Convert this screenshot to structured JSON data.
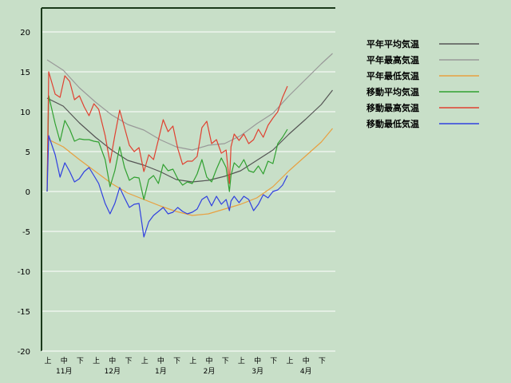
{
  "chart_data": {
    "type": "line",
    "title": "",
    "xlabel": "",
    "ylabel": "",
    "ylim": [
      -20,
      23
    ],
    "yticks": [
      20,
      15,
      10,
      5,
      0,
      -5,
      -10,
      -15,
      -20
    ],
    "grid": true,
    "legend_position": "right",
    "x_range": [
      0,
      18
    ],
    "x_dekad_ticks": [
      "上",
      "中",
      "下",
      "上",
      "中",
      "下",
      "上",
      "中",
      "下",
      "上",
      "中",
      "下",
      "上",
      "中",
      "下",
      "上",
      "中",
      "下"
    ],
    "x_month_labels": [
      "11月",
      "12月",
      "1月",
      "2月",
      "3月",
      "4月"
    ],
    "series": [
      {
        "name": "平年平均気温",
        "color": "#555555",
        "x": [
          0,
          1,
          2,
          3,
          4,
          5,
          6,
          7,
          8,
          9,
          10,
          11,
          12,
          13,
          14,
          15,
          16,
          17,
          17.7
        ],
        "y": [
          11.7,
          10.7,
          8.6,
          6.8,
          5.2,
          3.9,
          3.3,
          2.5,
          1.5,
          1.2,
          1.4,
          1.9,
          2.6,
          3.9,
          5.2,
          7.2,
          9.0,
          10.9,
          12.7
        ]
      },
      {
        "name": "平年最高気温",
        "color": "#999999",
        "x": [
          0,
          1,
          2,
          3,
          4,
          5,
          6,
          7,
          8,
          9,
          10,
          11,
          12,
          13,
          14,
          15,
          16,
          17,
          17.7
        ],
        "y": [
          16.5,
          15.2,
          13.0,
          11.2,
          9.6,
          8.4,
          7.7,
          6.5,
          5.6,
          5.2,
          5.8,
          6.0,
          7.0,
          8.5,
          9.8,
          12.0,
          14.0,
          16.0,
          17.3
        ]
      },
      {
        "name": "平年最低気温",
        "color": "#e8a040",
        "x": [
          0,
          1,
          2,
          3,
          4,
          5,
          6,
          7,
          8,
          9,
          10,
          11,
          12,
          13,
          14,
          15,
          16,
          17,
          17.7
        ],
        "y": [
          6.6,
          5.6,
          4.0,
          2.5,
          1.0,
          -0.2,
          -1.0,
          -1.8,
          -2.5,
          -3.0,
          -2.8,
          -2.2,
          -1.6,
          -0.8,
          0.6,
          2.6,
          4.4,
          6.2,
          7.9
        ]
      },
      {
        "name": "移動平均気温",
        "color": "#30a030",
        "x": [
          0,
          0.1,
          0.5,
          0.8,
          1.1,
          1.4,
          1.7,
          2.0,
          2.3,
          2.6,
          2.9,
          3.2,
          3.6,
          3.9,
          4.2,
          4.5,
          4.8,
          5.1,
          5.4,
          5.7,
          6.0,
          6.3,
          6.6,
          6.9,
          7.2,
          7.5,
          7.8,
          8.1,
          8.4,
          8.7,
          9.0,
          9.3,
          9.6,
          9.9,
          10.2,
          10.5,
          10.8,
          11.1,
          11.3,
          11.4,
          11.6,
          11.9,
          12.2,
          12.5,
          12.8,
          13.1,
          13.4,
          13.7,
          14.0,
          14.3,
          14.6,
          14.9
        ],
        "y": [
          0,
          12.0,
          8.5,
          6.3,
          8.9,
          7.8,
          6.3,
          6.6,
          6.5,
          6.5,
          6.3,
          6.2,
          4.0,
          0.6,
          2.6,
          5.6,
          3.0,
          1.4,
          1.8,
          1.7,
          -1.0,
          1.5,
          2.0,
          1.0,
          3.4,
          2.6,
          2.8,
          1.6,
          0.8,
          1.2,
          1.0,
          2.2,
          4.0,
          1.8,
          1.2,
          2.8,
          4.2,
          3.0,
          0.0,
          2.0,
          3.6,
          3.0,
          4.0,
          2.6,
          2.4,
          3.2,
          2.2,
          3.8,
          3.5,
          6.0,
          6.8,
          7.8
        ]
      },
      {
        "name": "移動最高気温",
        "color": "#e04030",
        "x": [
          0,
          0.1,
          0.5,
          0.8,
          1.1,
          1.4,
          1.7,
          2.0,
          2.3,
          2.6,
          2.9,
          3.2,
          3.6,
          3.9,
          4.2,
          4.5,
          4.8,
          5.1,
          5.4,
          5.7,
          6.0,
          6.3,
          6.6,
          6.9,
          7.2,
          7.5,
          7.8,
          8.1,
          8.4,
          8.7,
          9.0,
          9.3,
          9.6,
          9.9,
          10.2,
          10.5,
          10.8,
          11.1,
          11.3,
          11.4,
          11.6,
          11.9,
          12.2,
          12.5,
          12.8,
          13.1,
          13.4,
          13.7,
          14.0,
          14.3,
          14.6,
          14.9
        ],
        "y": [
          0,
          15.0,
          12.2,
          11.8,
          14.5,
          13.8,
          11.5,
          12.0,
          10.6,
          9.5,
          11.0,
          10.3,
          7.0,
          3.6,
          7.0,
          10.2,
          8.0,
          5.8,
          5.0,
          5.5,
          2.5,
          4.6,
          4.0,
          6.5,
          9.0,
          7.5,
          8.2,
          5.4,
          3.4,
          3.8,
          3.8,
          4.4,
          8.0,
          8.8,
          6.0,
          6.5,
          4.8,
          5.2,
          1.0,
          5.6,
          7.2,
          6.4,
          7.2,
          6.0,
          6.5,
          7.8,
          6.8,
          8.3,
          9.2,
          10.0,
          11.8,
          13.2
        ]
      },
      {
        "name": "移動最低気温",
        "color": "#3040e0",
        "x": [
          0,
          0.1,
          0.5,
          0.8,
          1.1,
          1.4,
          1.7,
          2.0,
          2.3,
          2.6,
          2.9,
          3.2,
          3.6,
          3.9,
          4.2,
          4.5,
          4.8,
          5.1,
          5.4,
          5.7,
          6.0,
          6.3,
          6.6,
          6.9,
          7.2,
          7.5,
          7.8,
          8.1,
          8.4,
          8.7,
          9.0,
          9.3,
          9.6,
          9.9,
          10.2,
          10.5,
          10.8,
          11.1,
          11.3,
          11.4,
          11.6,
          11.9,
          12.2,
          12.5,
          12.8,
          13.1,
          13.4,
          13.7,
          14.0,
          14.3,
          14.6,
          14.9
        ],
        "y": [
          0,
          7.0,
          4.6,
          1.8,
          3.6,
          2.5,
          1.2,
          1.6,
          2.5,
          3.0,
          2.0,
          1.0,
          -1.5,
          -2.8,
          -1.5,
          0.5,
          -0.8,
          -2.0,
          -1.6,
          -1.5,
          -5.7,
          -3.8,
          -3.0,
          -2.5,
          -2.0,
          -2.8,
          -2.6,
          -2.0,
          -2.5,
          -2.8,
          -2.6,
          -2.2,
          -1.0,
          -0.6,
          -1.8,
          -0.6,
          -1.6,
          -1.0,
          -2.4,
          -1.2,
          -0.6,
          -1.4,
          -0.6,
          -1.0,
          -2.4,
          -1.6,
          -0.4,
          -0.8,
          0.0,
          0.2,
          0.8,
          2.0
        ]
      }
    ]
  }
}
